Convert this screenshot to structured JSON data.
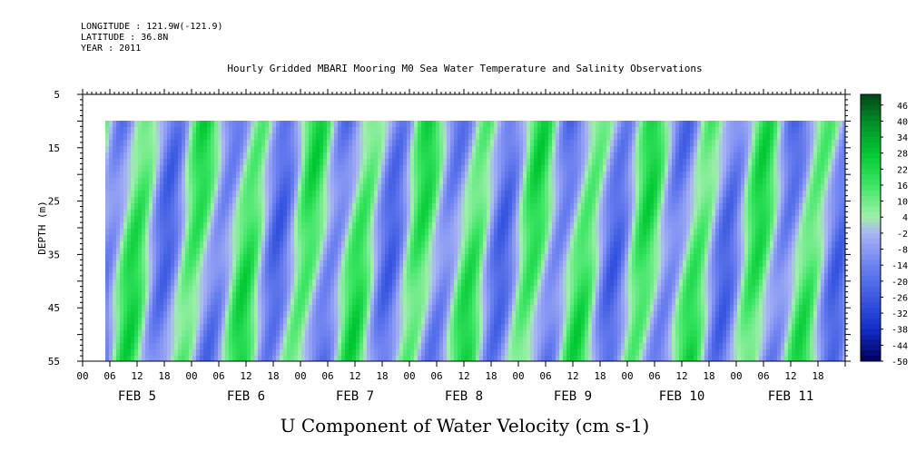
{
  "header": {
    "longitude": "LONGITUDE : 121.9W(-121.9)",
    "latitude": "LATITUDE : 36.8N",
    "year": "YEAR : 2011"
  },
  "chart_data": {
    "type": "heatmap",
    "title": "Hourly Gridded MBARI Mooring M0 Sea Water Temperature and Salinity Observations",
    "xlabel": "U Component of Water Velocity (cm s-1)",
    "ylabel": "DEPTH (m)",
    "ylim": [
      5,
      55
    ],
    "y_inverted": true,
    "y_ticks": [
      "5",
      "15",
      "25",
      "35",
      "45",
      "55"
    ],
    "data_depth_range": [
      10,
      55
    ],
    "x_hour_labels": [
      "00",
      "06",
      "12",
      "18",
      "00",
      "06",
      "12",
      "18",
      "00",
      "06",
      "12",
      "18",
      "00",
      "06",
      "12",
      "18",
      "00",
      "06",
      "12",
      "18",
      "00",
      "06",
      "12",
      "18",
      "00",
      "06",
      "12",
      "18"
    ],
    "x_day_labels": [
      "FEB  5",
      "FEB  6",
      "FEB  7",
      "FEB  8",
      "FEB  9",
      "FEB 10",
      "FEB 11"
    ],
    "x_range_hours": [
      0,
      168
    ],
    "data_start_hour": 5,
    "colorbar": {
      "labels": [
        "46",
        "40",
        "34",
        "28",
        "22",
        "16",
        "10",
        "4",
        "-2",
        "-8",
        "-14",
        "-20",
        "-26",
        "-32",
        "-38",
        "-44",
        "-50"
      ],
      "range": [
        -50,
        50
      ]
    },
    "colors": {
      "strong_positive": "#00c832",
      "positive": "#3ce864",
      "weak_positive": "#a0f0a8",
      "weak_negative": "#a8b0f4",
      "negative": "#7c8cf0",
      "strong_negative": "#4a64e6"
    }
  }
}
